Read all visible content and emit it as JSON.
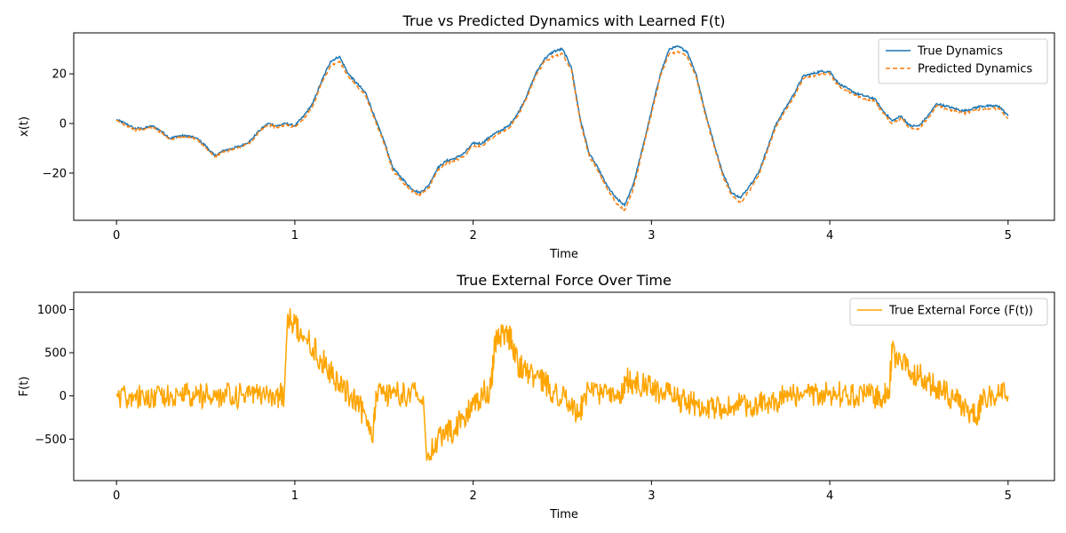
{
  "chart_data": [
    {
      "type": "line",
      "title": "True vs Predicted Dynamics with Learned F(t)",
      "xlabel": "Time",
      "ylabel": "x(t)",
      "xlim": [
        -0.24,
        5.26
      ],
      "ylim": [
        -39,
        36.5
      ],
      "xticks": [
        0,
        1,
        2,
        3,
        4,
        5
      ],
      "yticks": [
        -20,
        0,
        20
      ],
      "xtick_labels": [
        "0",
        "1",
        "2",
        "3",
        "4",
        "5"
      ],
      "ytick_labels": [
        "−20",
        "0",
        "20"
      ],
      "legend_position": "top-right",
      "grid": false,
      "series": [
        {
          "name": "True Dynamics",
          "color": "#1f77b4",
          "style": "solid",
          "x": [
            0,
            0.05,
            0.1,
            0.15,
            0.2,
            0.25,
            0.3,
            0.35,
            0.4,
            0.45,
            0.5,
            0.55,
            0.6,
            0.65,
            0.7,
            0.75,
            0.8,
            0.85,
            0.9,
            0.95,
            1.0,
            1.05,
            1.1,
            1.15,
            1.2,
            1.25,
            1.3,
            1.35,
            1.4,
            1.45,
            1.5,
            1.55,
            1.6,
            1.65,
            1.7,
            1.75,
            1.8,
            1.85,
            1.9,
            1.95,
            2.0,
            2.05,
            2.1,
            2.15,
            2.2,
            2.25,
            2.3,
            2.35,
            2.4,
            2.45,
            2.5,
            2.55,
            2.6,
            2.65,
            2.7,
            2.75,
            2.8,
            2.85,
            2.9,
            2.95,
            3.0,
            3.05,
            3.1,
            3.15,
            3.2,
            3.25,
            3.3,
            3.35,
            3.4,
            3.45,
            3.5,
            3.55,
            3.6,
            3.65,
            3.7,
            3.75,
            3.8,
            3.85,
            3.9,
            3.95,
            4.0,
            4.05,
            4.1,
            4.15,
            4.2,
            4.25,
            4.3,
            4.35,
            4.4,
            4.45,
            4.5,
            4.55,
            4.6,
            4.65,
            4.7,
            4.75,
            4.8,
            4.85,
            4.9,
            4.95,
            5.0
          ],
          "y": [
            1.5,
            0,
            -2,
            -2,
            -1,
            -3,
            -6,
            -5,
            -5,
            -6,
            -9,
            -13,
            -11,
            -10,
            -9,
            -7,
            -3,
            0,
            -1,
            0,
            -1,
            3,
            8,
            17,
            25,
            27,
            20,
            16,
            12,
            2,
            -7,
            -18,
            -22,
            -26,
            -28,
            -25,
            -18,
            -15,
            -14,
            -12,
            -8,
            -8,
            -5,
            -3,
            -1,
            4,
            11,
            20,
            26,
            29,
            30,
            23,
            2,
            -12,
            -18,
            -25,
            -30,
            -33,
            -24,
            -10,
            5,
            20,
            30,
            31,
            29,
            20,
            5,
            -8,
            -20,
            -28,
            -30,
            -25,
            -20,
            -10,
            0,
            6,
            12,
            19,
            20,
            21,
            21,
            16,
            14,
            12,
            11,
            10,
            5,
            1,
            3,
            -1,
            -1,
            3,
            8,
            7,
            6,
            5,
            6,
            7,
            7,
            7,
            3
          ]
        },
        {
          "name": "Predicted Dynamics",
          "color": "#ff7f0e",
          "style": "dashed",
          "x": [
            0,
            0.05,
            0.1,
            0.15,
            0.2,
            0.25,
            0.3,
            0.35,
            0.4,
            0.45,
            0.5,
            0.55,
            0.6,
            0.65,
            0.7,
            0.75,
            0.8,
            0.85,
            0.9,
            0.95,
            1.0,
            1.05,
            1.1,
            1.15,
            1.2,
            1.25,
            1.3,
            1.35,
            1.4,
            1.45,
            1.5,
            1.55,
            1.6,
            1.65,
            1.7,
            1.75,
            1.8,
            1.85,
            1.9,
            1.95,
            2.0,
            2.05,
            2.1,
            2.15,
            2.2,
            2.25,
            2.3,
            2.35,
            2.4,
            2.45,
            2.5,
            2.55,
            2.6,
            2.65,
            2.7,
            2.75,
            2.8,
            2.85,
            2.9,
            2.95,
            3.0,
            3.05,
            3.1,
            3.15,
            3.2,
            3.25,
            3.3,
            3.35,
            3.4,
            3.45,
            3.5,
            3.55,
            3.6,
            3.65,
            3.7,
            3.75,
            3.8,
            3.85,
            3.9,
            3.95,
            4.0,
            4.05,
            4.1,
            4.15,
            4.2,
            4.25,
            4.3,
            4.35,
            4.4,
            4.45,
            4.5,
            4.55,
            4.6,
            4.65,
            4.7,
            4.75,
            4.8,
            4.85,
            4.9,
            4.95,
            5.0
          ],
          "y": [
            1,
            -0.5,
            -2.5,
            -2.5,
            -1.5,
            -3.5,
            -6.5,
            -5.5,
            -5.5,
            -6.5,
            -9.5,
            -13.5,
            -11.5,
            -10.5,
            -9.5,
            -7.5,
            -3.5,
            -0.5,
            -1.5,
            -0.5,
            -1.5,
            2,
            7,
            16,
            23,
            25,
            19,
            15,
            11,
            1,
            -8,
            -19,
            -23,
            -27,
            -29,
            -26,
            -19,
            -16,
            -15,
            -13,
            -9,
            -9,
            -6,
            -4,
            -2,
            3,
            10,
            19,
            25,
            27,
            28,
            22,
            1,
            -13,
            -19,
            -26,
            -32,
            -35,
            -26,
            -11,
            4,
            19,
            28,
            29,
            27,
            19,
            4,
            -9,
            -21,
            -29,
            -32,
            -27,
            -21,
            -11,
            -1,
            5,
            11,
            18,
            19,
            20,
            20,
            15,
            13,
            11,
            10,
            9,
            4,
            0,
            2,
            -2,
            -2,
            2,
            7,
            6,
            5,
            4,
            5,
            6,
            6,
            6,
            2
          ]
        }
      ]
    },
    {
      "type": "line",
      "title": "True External Force Over Time",
      "xlabel": "Time",
      "ylabel": "F(t)",
      "xlim": [
        -0.24,
        5.26
      ],
      "ylim": [
        -980,
        1200
      ],
      "xticks": [
        0,
        1,
        2,
        3,
        4,
        5
      ],
      "yticks": [
        -500,
        0,
        500,
        1000
      ],
      "xtick_labels": [
        "0",
        "1",
        "2",
        "3",
        "4",
        "5"
      ],
      "ytick_labels": [
        "−500",
        "0",
        "500",
        "1000"
      ],
      "legend_position": "top-right",
      "grid": false,
      "series": [
        {
          "name": "True External Force (F(t))",
          "color": "#ffa500",
          "style": "solid",
          "x": [
            0,
            0.05,
            0.1,
            0.15,
            0.2,
            0.25,
            0.3,
            0.35,
            0.4,
            0.45,
            0.5,
            0.55,
            0.6,
            0.65,
            0.7,
            0.75,
            0.8,
            0.85,
            0.9,
            0.94,
            0.96,
            1.0,
            1.05,
            1.1,
            1.15,
            1.2,
            1.25,
            1.3,
            1.35,
            1.4,
            1.44,
            1.46,
            1.5,
            1.55,
            1.6,
            1.65,
            1.72,
            1.74,
            1.8,
            1.85,
            1.9,
            1.95,
            2.0,
            2.05,
            2.1,
            2.12,
            2.15,
            2.2,
            2.22,
            2.25,
            2.3,
            2.35,
            2.4,
            2.45,
            2.5,
            2.55,
            2.6,
            2.62,
            2.7,
            2.75,
            2.8,
            2.84,
            2.86,
            2.9,
            2.95,
            3.0,
            3.05,
            3.1,
            3.15,
            3.2,
            3.25,
            3.3,
            3.35,
            3.4,
            3.45,
            3.5,
            3.55,
            3.6,
            3.65,
            3.7,
            3.75,
            3.8,
            3.85,
            3.9,
            3.95,
            4.0,
            4.05,
            4.1,
            4.15,
            4.2,
            4.25,
            4.3,
            4.33,
            4.35,
            4.4,
            4.45,
            4.5,
            4.55,
            4.6,
            4.65,
            4.7,
            4.75,
            4.8,
            4.83,
            4.85,
            4.9,
            4.95,
            5.0
          ],
          "y": [
            0,
            0,
            10,
            0,
            10,
            0,
            10,
            0,
            10,
            0,
            0,
            10,
            0,
            0,
            10,
            0,
            0,
            10,
            0,
            0,
            950,
            830,
            700,
            560,
            430,
            280,
            150,
            40,
            -100,
            -250,
            -420,
            30,
            20,
            30,
            20,
            30,
            0,
            -750,
            -520,
            -450,
            -360,
            -260,
            -110,
            20,
            80,
            600,
            700,
            690,
            600,
            380,
            280,
            200,
            150,
            60,
            -20,
            -120,
            -200,
            20,
            20,
            20,
            10,
            20,
            180,
            160,
            120,
            80,
            50,
            10,
            -50,
            -80,
            -100,
            -130,
            -140,
            -150,
            -130,
            -110,
            -120,
            -100,
            -70,
            -40,
            -20,
            0,
            10,
            20,
            30,
            30,
            20,
            10,
            0,
            0,
            0,
            0,
            10,
            500,
            400,
            300,
            240,
            170,
            100,
            30,
            -50,
            -130,
            -200,
            -250,
            0,
            0,
            0,
            0
          ]
        }
      ]
    }
  ]
}
